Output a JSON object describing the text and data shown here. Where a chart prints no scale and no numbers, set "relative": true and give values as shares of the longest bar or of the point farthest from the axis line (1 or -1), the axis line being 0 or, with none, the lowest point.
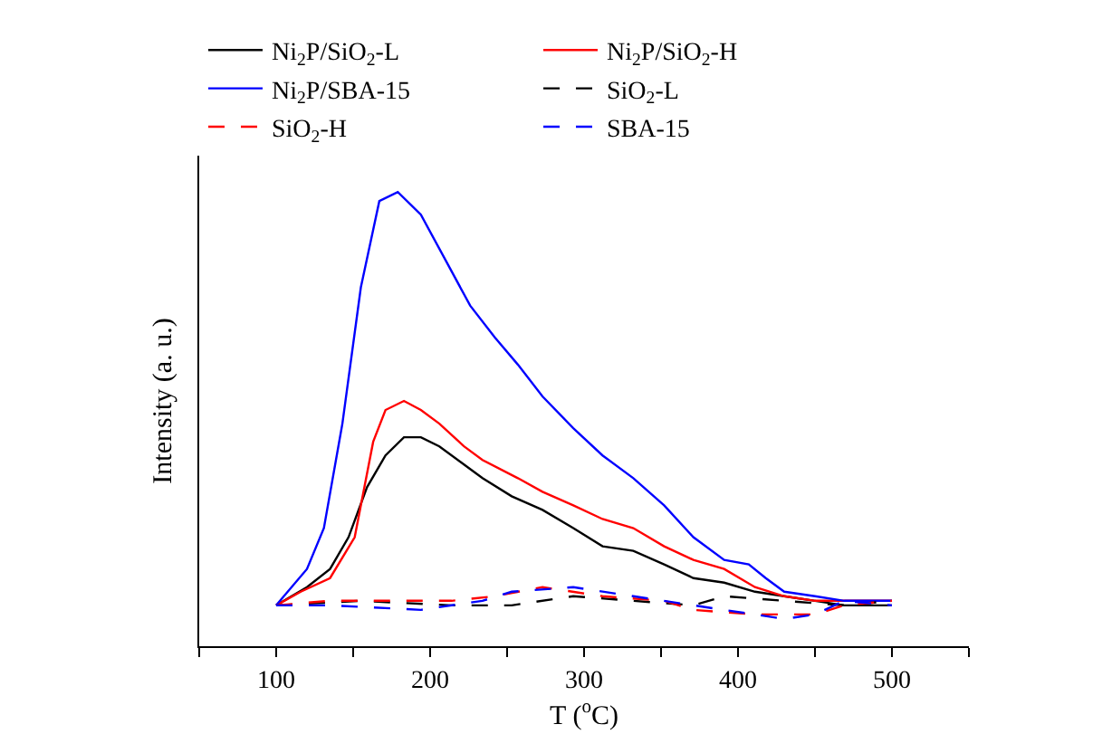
{
  "chart_data": {
    "type": "line",
    "relative": true,
    "xlabel": "T ($^{o}$C)",
    "ylabel": "Intensity (a. u.)",
    "xlim": [
      50,
      550
    ],
    "xticks": [
      {
        "value": 50,
        "label": null
      },
      100,
      {
        "value": 150,
        "label": null
      },
      200,
      {
        "value": 250,
        "label": null
      },
      300,
      {
        "value": 350,
        "label": null
      },
      400,
      {
        "value": 450,
        "label": null
      },
      500,
      {
        "value": 550,
        "label": null
      }
    ],
    "tick_labels": "x",
    "legend": "top",
    "grid": false,
    "series": [
      {
        "name": "Ni$_{2}$P/SiO$_{2}$-L",
        "color": "#000000",
        "line_style": "solid",
        "x": [
          100,
          120,
          135,
          147,
          159,
          171,
          183,
          194,
          206,
          222,
          234,
          253,
          273,
          293,
          312,
          332,
          352,
          371,
          391,
          411,
          430,
          450,
          469,
          500
        ],
        "values": [
          0.09,
          0.13,
          0.17,
          0.24,
          0.35,
          0.42,
          0.46,
          0.46,
          0.44,
          0.4,
          0.37,
          0.33,
          0.3,
          0.26,
          0.22,
          0.21,
          0.18,
          0.15,
          0.14,
          0.12,
          0.11,
          0.1,
          0.09,
          0.09
        ]
      },
      {
        "name": "Ni$_{2}$P/SiO$_{2}$-H",
        "color": "#ff0000",
        "line_style": "solid",
        "x": [
          100,
          116,
          135,
          151,
          163,
          171,
          183,
          194,
          206,
          222,
          234,
          257,
          273,
          293,
          312,
          332,
          352,
          371,
          391,
          411,
          430,
          450,
          469,
          500
        ],
        "values": [
          0.09,
          0.12,
          0.15,
          0.24,
          0.45,
          0.52,
          0.54,
          0.52,
          0.49,
          0.44,
          0.41,
          0.37,
          0.34,
          0.31,
          0.28,
          0.26,
          0.22,
          0.19,
          0.17,
          0.13,
          0.11,
          0.1,
          0.1,
          0.1
        ]
      },
      {
        "name": "Ni$_{2}$P/SBA-15",
        "color": "#0000ff",
        "line_style": "solid",
        "x": [
          100,
          120,
          131,
          143,
          155,
          167,
          179,
          194,
          210,
          226,
          242,
          257,
          273,
          293,
          312,
          332,
          352,
          371,
          391,
          407,
          418,
          430,
          450,
          469,
          500
        ],
        "values": [
          0.09,
          0.17,
          0.26,
          0.49,
          0.79,
          0.98,
          1,
          0.95,
          0.85,
          0.75,
          0.68,
          0.62,
          0.55,
          0.48,
          0.42,
          0.37,
          0.31,
          0.24,
          0.19,
          0.18,
          0.15,
          0.12,
          0.11,
          0.1,
          0.1
        ]
      },
      {
        "name": "SiO$_{2}$-L",
        "color": "#000000",
        "line_style": "dashed",
        "x": [
          100,
          155,
          214,
          253,
          293,
          332,
          371,
          391,
          430,
          469,
          500
        ],
        "values": [
          0.09,
          0.1,
          0.09,
          0.09,
          0.11,
          0.1,
          0.09,
          0.11,
          0.1,
          0.09,
          0.1
        ]
      },
      {
        "name": "SiO$_{2}$-H",
        "color": "#ff0000",
        "line_style": "dashed",
        "x": [
          100,
          135,
          175,
          214,
          242,
          273,
          312,
          352,
          371,
          411,
          450,
          469,
          500
        ],
        "values": [
          0.09,
          0.1,
          0.1,
          0.1,
          0.11,
          0.13,
          0.11,
          0.1,
          0.08,
          0.07,
          0.07,
          0.09,
          0.1
        ]
      },
      {
        "name": "SBA-15",
        "color": "#0000ff",
        "line_style": "dashed",
        "x": [
          100,
          135,
          194,
          234,
          253,
          293,
          332,
          371,
          411,
          430,
          450,
          469,
          500
        ],
        "values": [
          0.09,
          0.09,
          0.08,
          0.1,
          0.12,
          0.13,
          0.11,
          0.09,
          0.07,
          0.06,
          0.07,
          0.1,
          0.09
        ]
      }
    ]
  }
}
